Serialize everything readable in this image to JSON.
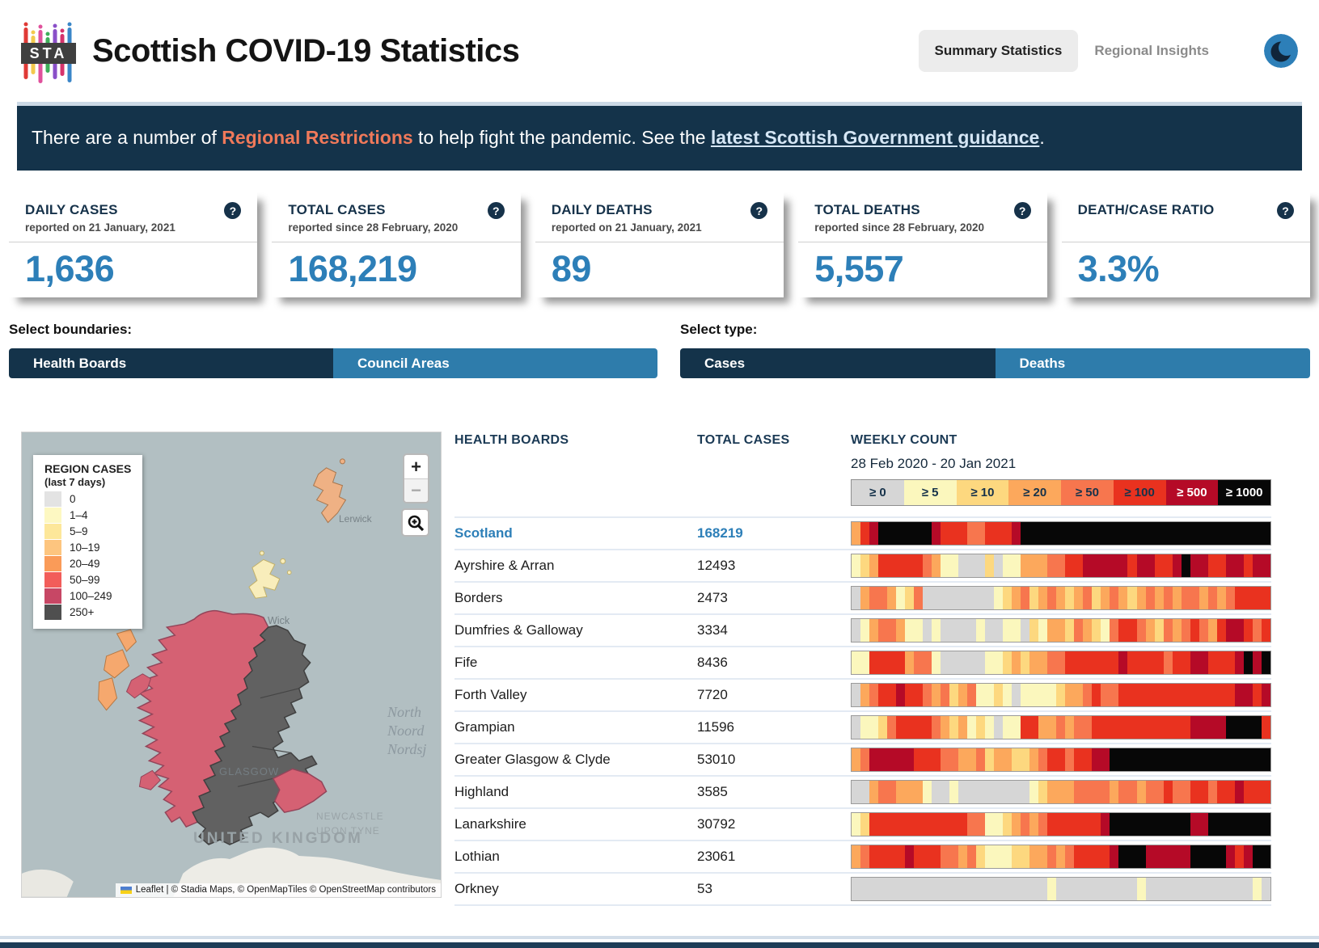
{
  "header": {
    "logo_text": "STA",
    "title": "Scottish COVID-19 Statistics",
    "nav": [
      {
        "label": "Summary Statistics",
        "active": true
      },
      {
        "label": "Regional Insights",
        "active": false
      }
    ],
    "theme_toggle_icon": "moon-icon"
  },
  "banner": {
    "text_before": "There are a number of ",
    "highlight": "Regional Restrictions",
    "text_middle": " to help fight the pandemic. See the ",
    "link": "latest Scottish Government guidance",
    "text_after": "."
  },
  "stat_cards": [
    {
      "title": "DAILY CASES",
      "subtitle": "reported on 21 January, 2021",
      "value": "1,636",
      "help_icon": "question-mark-icon"
    },
    {
      "title": "TOTAL CASES",
      "subtitle": "reported since 28 February, 2020",
      "value": "168,219",
      "help_icon": "question-mark-icon"
    },
    {
      "title": "DAILY DEATHS",
      "subtitle": "reported on 21 January, 2021",
      "value": "89",
      "help_icon": "question-mark-icon"
    },
    {
      "title": "TOTAL DEATHS",
      "subtitle": "reported since 28 February, 2020",
      "value": "5,557",
      "help_icon": "question-mark-icon"
    },
    {
      "title": "DEATH/CASE RATIO",
      "subtitle": "",
      "value": "3.3%",
      "help_icon": "question-mark-icon"
    }
  ],
  "controls": {
    "boundaries_label": "Select boundaries:",
    "boundaries": [
      {
        "label": "Health Boards",
        "selected": true
      },
      {
        "label": "Council Areas",
        "selected": false
      }
    ],
    "type_label": "Select type:",
    "types": [
      {
        "label": "Cases",
        "selected": true
      },
      {
        "label": "Deaths",
        "selected": false
      }
    ]
  },
  "colors": {
    "navy": "#14334a",
    "accent_blue": "#2d7fb8",
    "highlight_orange": "#f0795a",
    "selected_button": "#14334a",
    "unselected_button": "#2e7cab"
  },
  "map": {
    "legend_title": "REGION CASES",
    "legend_subtitle": "(last 7 days)",
    "legend_items": [
      {
        "label": "0",
        "color": "#e3e3e3"
      },
      {
        "label": "1–4",
        "color": "#fdf8c2"
      },
      {
        "label": "5–9",
        "color": "#fde79a"
      },
      {
        "label": "10–19",
        "color": "#fdc57f"
      },
      {
        "label": "20–49",
        "color": "#fa9b58"
      },
      {
        "label": "50–99",
        "color": "#f25d5a"
      },
      {
        "label": "100–249",
        "color": "#c74765"
      },
      {
        "label": "250+",
        "color": "#4f4f4f"
      }
    ],
    "controls": {
      "zoom_in": "+",
      "zoom_out": "−",
      "zoom_in_icon": "plus-icon",
      "zoom_out_icon": "minus-icon",
      "magnify_icon": "magnifier-plus-icon"
    },
    "labels": {
      "lerwick": "Lerwick",
      "wick": "Wick",
      "glasgow": "GLASGOW",
      "newcastle_line1": "NEWCASTLE",
      "newcastle_line2": "UPON TYNE",
      "uk": "UNITED KINGDOM",
      "sea": [
        "North",
        "Noord",
        "Nordsj"
      ]
    },
    "attribution": "Leaflet | © Stadia Maps, © OpenMapTiles © OpenStreetMap contributors",
    "region_fills": {
      "highland_west": "#d56173",
      "east_south": "#616161",
      "borders": "#d56173",
      "western_isles": "#f5a86e",
      "orkney": "#f8edbb",
      "shetland": "#efb184",
      "sea": "#b2bfc2",
      "other_land": "#edece6"
    }
  },
  "table": {
    "col_region": "HEALTH BOARDS",
    "col_total": "TOTAL CASES",
    "col_weekly": "WEEKLY COUNT",
    "date_range": "28 Feb 2020 - 20 Jan 2021",
    "scale": [
      {
        "label": "≥ 0",
        "bg": "#d6d6d6",
        "fg": "#16324a"
      },
      {
        "label": "≥ 5",
        "bg": "#fbf7bd",
        "fg": "#16324a"
      },
      {
        "label": "≥ 10",
        "bg": "#fdd87f",
        "fg": "#16324a"
      },
      {
        "label": "≥ 20",
        "bg": "#fca85c",
        "fg": "#16324a"
      },
      {
        "label": "≥ 50",
        "bg": "#f7764e",
        "fg": "#16324a"
      },
      {
        "label": "≥ 100",
        "bg": "#e9321f",
        "fg": "#16324a"
      },
      {
        "label": "≥ 500",
        "bg": "#b50a27",
        "fg": "#ffffff"
      },
      {
        "label": "≥ 1000",
        "bg": "#070707",
        "fg": "#ffffff"
      }
    ],
    "color_map": {
      "g": "#d6d6d6",
      "y1": "#fbf7bd",
      "y2": "#fdd87f",
      "o1": "#fca85c",
      "o2": "#f7764e",
      "r": "#e9321f",
      "d": "#b50a27",
      "k": "#070707"
    },
    "rows": [
      {
        "name": "Scotland",
        "total": "168219",
        "link": true,
        "weeks": [
          "o1",
          "r",
          "d",
          "k",
          "k",
          "k",
          "k",
          "k",
          "k",
          "d",
          "r",
          "r",
          "r",
          "o2",
          "o2",
          "r",
          "r",
          "r",
          "d",
          "k",
          "k",
          "k",
          "k",
          "k",
          "k",
          "k",
          "k",
          "k",
          "k",
          "k",
          "k",
          "k",
          "k",
          "k",
          "k",
          "k",
          "k",
          "k",
          "k",
          "k",
          "k",
          "k",
          "k",
          "k",
          "k",
          "k",
          "k"
        ]
      },
      {
        "name": "Ayrshire & Arran",
        "total": "12493",
        "link": false,
        "weeks": [
          "y1",
          "y2",
          "o1",
          "r",
          "r",
          "r",
          "r",
          "r",
          "o2",
          "o1",
          "y1",
          "y1",
          "g",
          "g",
          "g",
          "y2",
          "g",
          "y1",
          "y1",
          "o1",
          "o1",
          "o1",
          "o2",
          "o2",
          "r",
          "r",
          "d",
          "d",
          "d",
          "d",
          "d",
          "r",
          "d",
          "d",
          "r",
          "r",
          "d",
          "k",
          "d",
          "d",
          "r",
          "r",
          "d",
          "d",
          "r",
          "d",
          "d"
        ]
      },
      {
        "name": "Borders",
        "total": "2473",
        "link": false,
        "weeks": [
          "g",
          "o1",
          "o2",
          "o2",
          "o1",
          "y1",
          "y2",
          "o2",
          "g",
          "g",
          "g",
          "g",
          "g",
          "g",
          "g",
          "g",
          "y1",
          "y2",
          "o1",
          "o2",
          "y2",
          "o1",
          "o2",
          "o1",
          "y2",
          "o1",
          "o2",
          "y2",
          "o1",
          "o2",
          "o1",
          "y2",
          "o1",
          "o2",
          "o1",
          "o2",
          "o1",
          "o2",
          "o2",
          "o1",
          "o2",
          "o1",
          "o2",
          "r",
          "r",
          "r",
          "r"
        ]
      },
      {
        "name": "Dumfries & Galloway",
        "total": "3334",
        "link": false,
        "weeks": [
          "g",
          "y1",
          "o1",
          "o2",
          "o2",
          "o1",
          "y1",
          "y1",
          "g",
          "y1",
          "g",
          "g",
          "g",
          "g",
          "y1",
          "g",
          "g",
          "y1",
          "y1",
          "g",
          "y2",
          "y1",
          "o1",
          "o1",
          "y2",
          "o2",
          "o1",
          "y2",
          "y1",
          "o2",
          "r",
          "r",
          "o2",
          "o1",
          "y2",
          "o2",
          "o1",
          "o2",
          "r",
          "o2",
          "o1",
          "r",
          "d",
          "d",
          "r",
          "o2",
          "r"
        ]
      },
      {
        "name": "Fife",
        "total": "8436",
        "link": false,
        "weeks": [
          "y1",
          "y1",
          "r",
          "r",
          "r",
          "r",
          "o1",
          "o2",
          "o2",
          "y1",
          "g",
          "g",
          "g",
          "g",
          "g",
          "y1",
          "y1",
          "y2",
          "o1",
          "y2",
          "o1",
          "o1",
          "o2",
          "o2",
          "r",
          "r",
          "r",
          "r",
          "r",
          "r",
          "d",
          "r",
          "r",
          "r",
          "r",
          "o2",
          "r",
          "r",
          "d",
          "d",
          "r",
          "r",
          "r",
          "d",
          "k",
          "d",
          "k"
        ]
      },
      {
        "name": "Forth Valley",
        "total": "7720",
        "link": false,
        "weeks": [
          "g",
          "o1",
          "o2",
          "r",
          "r",
          "d",
          "r",
          "r",
          "o2",
          "o1",
          "o2",
          "y2",
          "o1",
          "o2",
          "y1",
          "y1",
          "y2",
          "y1",
          "g",
          "y1",
          "y1",
          "y1",
          "y1",
          "y2",
          "o1",
          "o1",
          "o2",
          "r",
          "o2",
          "o2",
          "r",
          "r",
          "r",
          "r",
          "r",
          "r",
          "r",
          "r",
          "r",
          "r",
          "r",
          "r",
          "r",
          "d",
          "d",
          "r",
          "d"
        ]
      },
      {
        "name": "Grampian",
        "total": "11596",
        "link": false,
        "weeks": [
          "g",
          "y1",
          "y1",
          "y2",
          "o2",
          "r",
          "r",
          "r",
          "r",
          "o2",
          "o1",
          "y2",
          "o1",
          "y1",
          "y2",
          "y1",
          "g",
          "y1",
          "y1",
          "r",
          "r",
          "o1",
          "o1",
          "o2",
          "o1",
          "o2",
          "o2",
          "r",
          "r",
          "r",
          "r",
          "r",
          "r",
          "r",
          "r",
          "r",
          "r",
          "r",
          "d",
          "d",
          "d",
          "d",
          "k",
          "k",
          "k",
          "k",
          "r"
        ]
      },
      {
        "name": "Greater Glasgow & Clyde",
        "total": "53010",
        "link": false,
        "weeks": [
          "o1",
          "o2",
          "d",
          "d",
          "d",
          "d",
          "d",
          "r",
          "r",
          "r",
          "o2",
          "o2",
          "o1",
          "o1",
          "o2",
          "y2",
          "o1",
          "o1",
          "y2",
          "y2",
          "o1",
          "o2",
          "r",
          "r",
          "o2",
          "r",
          "r",
          "d",
          "d",
          "k",
          "k",
          "k",
          "k",
          "k",
          "k",
          "k",
          "k",
          "k",
          "k",
          "k",
          "k",
          "k",
          "k",
          "k",
          "k",
          "k",
          "k"
        ]
      },
      {
        "name": "Highland",
        "total": "3585",
        "link": false,
        "weeks": [
          "g",
          "g",
          "o1",
          "o2",
          "o2",
          "o1",
          "o1",
          "o1",
          "y1",
          "g",
          "g",
          "y1",
          "g",
          "g",
          "g",
          "g",
          "g",
          "g",
          "g",
          "g",
          "y1",
          "y2",
          "o1",
          "o1",
          "o1",
          "o2",
          "o2",
          "o2",
          "o2",
          "o1",
          "o2",
          "o2",
          "o1",
          "o2",
          "o2",
          "r",
          "o2",
          "o2",
          "r",
          "r",
          "o2",
          "r",
          "r",
          "d",
          "r",
          "r",
          "r"
        ]
      },
      {
        "name": "Lanarkshire",
        "total": "30792",
        "link": false,
        "weeks": [
          "y1",
          "y2",
          "r",
          "r",
          "r",
          "r",
          "r",
          "r",
          "r",
          "r",
          "r",
          "r",
          "r",
          "o2",
          "o2",
          "y1",
          "y1",
          "y2",
          "o1",
          "o2",
          "o1",
          "o2",
          "r",
          "r",
          "r",
          "r",
          "r",
          "r",
          "d",
          "k",
          "k",
          "k",
          "k",
          "k",
          "k",
          "k",
          "k",
          "k",
          "d",
          "d",
          "k",
          "k",
          "k",
          "k",
          "k",
          "k",
          "k"
        ]
      },
      {
        "name": "Lothian",
        "total": "23061",
        "link": false,
        "weeks": [
          "o1",
          "o2",
          "r",
          "r",
          "r",
          "r",
          "d",
          "r",
          "r",
          "r",
          "o2",
          "o2",
          "o1",
          "o2",
          "y2",
          "y1",
          "y1",
          "y1",
          "y2",
          "y2",
          "o1",
          "o1",
          "o2",
          "o1",
          "o2",
          "r",
          "r",
          "r",
          "r",
          "d",
          "k",
          "k",
          "k",
          "d",
          "d",
          "d",
          "d",
          "d",
          "k",
          "k",
          "k",
          "k",
          "d",
          "r",
          "d",
          "k",
          "k"
        ]
      },
      {
        "name": "Orkney",
        "total": "53",
        "link": false,
        "weeks": [
          "g",
          "g",
          "g",
          "g",
          "g",
          "g",
          "g",
          "g",
          "g",
          "g",
          "g",
          "g",
          "g",
          "g",
          "g",
          "g",
          "g",
          "g",
          "g",
          "g",
          "g",
          "g",
          "y1",
          "g",
          "g",
          "g",
          "g",
          "g",
          "g",
          "g",
          "g",
          "g",
          "y1",
          "g",
          "g",
          "g",
          "g",
          "g",
          "g",
          "g",
          "g",
          "g",
          "g",
          "g",
          "g",
          "y1",
          "g"
        ]
      }
    ]
  }
}
